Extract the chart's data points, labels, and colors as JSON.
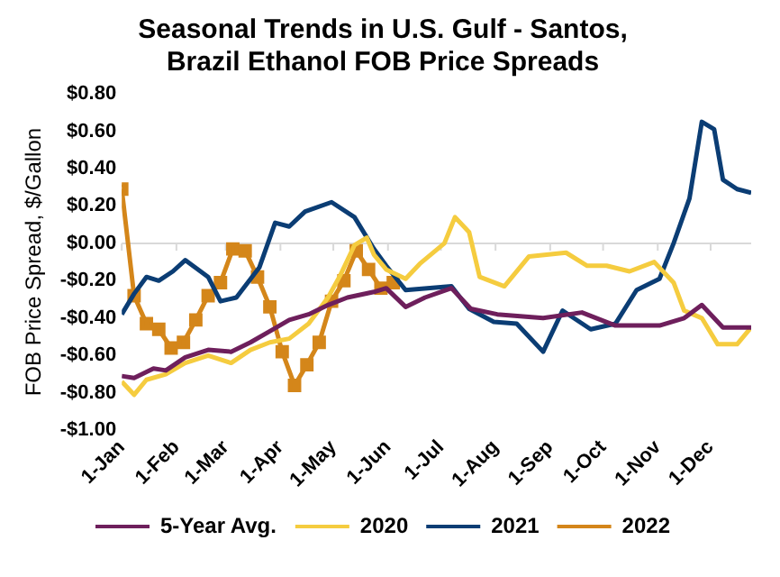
{
  "chart_data": {
    "type": "line",
    "title": "Seasonal Trends in U.S. Gulf - Santos,\nBrazil Ethanol FOB Price Spreads",
    "ylabel": "FOB Price Spread, $/Gallon",
    "xlim": [
      "--01-01",
      "--12-24"
    ],
    "xticks": [
      {
        "value": "--01-01",
        "label": "1-Jan"
      },
      {
        "value": "--02-01",
        "label": "1-Feb"
      },
      {
        "value": "--03-01",
        "label": "1-Mar"
      },
      {
        "value": "--04-01",
        "label": "1-Apr"
      },
      {
        "value": "--05-01",
        "label": "1-May"
      },
      {
        "value": "--06-01",
        "label": "1-Jun"
      },
      {
        "value": "--07-01",
        "label": "1-Jul"
      },
      {
        "value": "--08-01",
        "label": "1-Aug"
      },
      {
        "value": "--09-01",
        "label": "1-Sep"
      },
      {
        "value": "--10-01",
        "label": "1-Oct"
      },
      {
        "value": "--11-01",
        "label": "1-Nov"
      },
      {
        "value": "--12-01",
        "label": "1-Dec"
      }
    ],
    "ylim": [
      -1.0,
      0.8
    ],
    "yticks": [
      {
        "value": 0.8,
        "label": "$0.80"
      },
      {
        "value": 0.6,
        "label": "$0.60"
      },
      {
        "value": 0.4,
        "label": "$0.40"
      },
      {
        "value": 0.2,
        "label": "$0.20"
      },
      {
        "value": 0,
        "label": "$0.00"
      },
      {
        "value": -0.2,
        "label": "-$0.20"
      },
      {
        "value": -0.4,
        "label": "-$0.40"
      },
      {
        "value": -0.6,
        "label": "-$0.60"
      },
      {
        "value": -0.8,
        "label": "-$0.80"
      },
      {
        "value": -1.0,
        "label": "-$1.00"
      }
    ],
    "ref_lines": [
      {
        "axis": "y",
        "value": 0,
        "color": "#d9d9d9"
      }
    ],
    "grid": false,
    "legend": "bottom",
    "marker": "none",
    "line_style": "solid",
    "series": [
      {
        "name": "5-Year Avg.",
        "color": "#6e1f5c",
        "x": [
          "--01-01",
          "--01-08",
          "--01-19",
          "--01-26",
          "--02-06",
          "--02-19",
          "--03-04",
          "--03-15",
          "--03-26",
          "--04-06",
          "--04-17",
          "--04-28",
          "--05-09",
          "--05-24",
          "--05-31",
          "--06-11",
          "--06-22",
          "--07-07",
          "--07-18",
          "--08-02",
          "--08-28",
          "--09-19",
          "--10-08",
          "--11-02",
          "--11-16",
          "--11-26",
          "--12-08",
          "--12-24"
        ],
        "values": [
          -0.71,
          -0.72,
          -0.67,
          -0.68,
          -0.61,
          -0.57,
          -0.58,
          -0.53,
          -0.47,
          -0.41,
          -0.38,
          -0.33,
          -0.29,
          -0.26,
          -0.24,
          -0.34,
          -0.29,
          -0.24,
          -0.35,
          -0.38,
          -0.4,
          -0.37,
          -0.44,
          -0.44,
          -0.4,
          -0.33,
          -0.45,
          -0.45
        ]
      },
      {
        "name": "2020",
        "color": "#f5cc3f",
        "x": [
          "--01-01",
          "--01-08",
          "--01-15",
          "--01-26",
          "--02-06",
          "--02-19",
          "--03-04",
          "--03-15",
          "--03-26",
          "--04-06",
          "--04-17",
          "--04-28",
          "--05-05",
          "--05-13",
          "--05-20",
          "--05-24",
          "--05-31",
          "--06-11",
          "--06-19",
          "--07-03",
          "--07-09",
          "--07-17",
          "--07-23",
          "--08-06",
          "--08-20",
          "--09-10",
          "--09-22",
          "--10-03",
          "--10-16",
          "--10-30",
          "--11-10",
          "--11-16",
          "--11-26",
          "--12-05",
          "--12-16",
          "--12-24"
        ],
        "values": [
          -0.74,
          -0.81,
          -0.73,
          -0.7,
          -0.64,
          -0.6,
          -0.64,
          -0.57,
          -0.53,
          -0.51,
          -0.43,
          -0.29,
          -0.17,
          -0.01,
          0.03,
          -0.06,
          -0.14,
          -0.19,
          -0.11,
          0.0,
          0.14,
          0.06,
          -0.18,
          -0.23,
          -0.07,
          -0.05,
          -0.12,
          -0.12,
          -0.15,
          -0.1,
          -0.21,
          -0.36,
          -0.4,
          -0.54,
          -0.54,
          -0.45
        ]
      },
      {
        "name": "2021",
        "color": "#0b3d74",
        "x": [
          "--01-01",
          "--01-08",
          "--01-15",
          "--01-22",
          "--01-30",
          "--02-06",
          "--02-19",
          "--02-26",
          "--03-07",
          "--03-20",
          "--03-29",
          "--04-06",
          "--04-15",
          "--04-30",
          "--05-13",
          "--05-24",
          "--05-31",
          "--06-11",
          "--07-07",
          "--07-17",
          "--07-31",
          "--08-13",
          "--08-28",
          "--09-08",
          "--09-24",
          "--10-08",
          "--10-20",
          "--11-02",
          "--11-10",
          "--11-19",
          "--11-26",
          "--12-03",
          "--12-08",
          "--12-16",
          "--12-24"
        ],
        "values": [
          -0.38,
          -0.27,
          -0.18,
          -0.2,
          -0.15,
          -0.09,
          -0.18,
          -0.31,
          -0.29,
          -0.13,
          0.11,
          0.09,
          0.17,
          0.22,
          0.14,
          -0.03,
          -0.12,
          -0.25,
          -0.23,
          -0.35,
          -0.42,
          -0.43,
          -0.58,
          -0.36,
          -0.46,
          -0.43,
          -0.25,
          -0.19,
          0.0,
          0.24,
          0.65,
          0.61,
          0.34,
          0.29,
          0.27
        ]
      },
      {
        "name": "2022",
        "color": "#d4861a",
        "marker": "square",
        "x": [
          "--01-01",
          "--01-08",
          "--01-15",
          "--01-22",
          "--01-29",
          "--02-05",
          "--02-12",
          "--02-19",
          "--02-26",
          "--03-05",
          "--03-12",
          "--03-19",
          "--03-26",
          "--04-02",
          "--04-09",
          "--04-16",
          "--04-23",
          "--04-30",
          "--05-07",
          "--05-14",
          "--05-21",
          "--05-28",
          "--06-04"
        ],
        "values": [
          0.29,
          -0.28,
          -0.43,
          -0.46,
          -0.56,
          -0.53,
          -0.41,
          -0.28,
          -0.21,
          -0.03,
          -0.04,
          -0.18,
          -0.34,
          -0.58,
          -0.76,
          -0.65,
          -0.53,
          -0.31,
          -0.2,
          -0.04,
          -0.14,
          -0.24,
          -0.21
        ]
      }
    ]
  }
}
